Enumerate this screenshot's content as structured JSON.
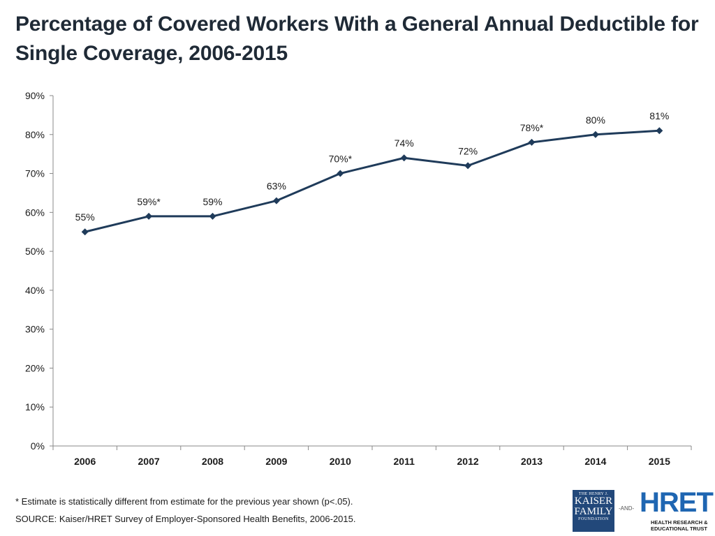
{
  "title": "Percentage of Covered Workers With a General Annual Deductible for Single Coverage, 2006-2015",
  "chart_data": {
    "type": "line",
    "title": "Percentage of Covered Workers With a General Annual Deductible for Single Coverage, 2006-2015",
    "xlabel": "",
    "ylabel": "",
    "categories": [
      "2006",
      "2007",
      "2008",
      "2009",
      "2010",
      "2011",
      "2012",
      "2013",
      "2014",
      "2015"
    ],
    "series": [
      {
        "name": "Covered Workers With a General Annual Deductible",
        "values": [
          55,
          59,
          59,
          63,
          70,
          74,
          72,
          78,
          80,
          81
        ],
        "labels": [
          "55%",
          "59%*",
          "59%",
          "63%",
          "70%*",
          "74%",
          "72%",
          "78%*",
          "80%",
          "81%"
        ]
      }
    ],
    "ylim": [
      0,
      90
    ],
    "yticks": [
      0,
      10,
      20,
      30,
      40,
      50,
      60,
      70,
      80,
      90
    ],
    "ytick_labels": [
      "0%",
      "10%",
      "20%",
      "30%",
      "40%",
      "50%",
      "60%",
      "70%",
      "80%",
      "90%"
    ],
    "grid": false,
    "line_color": "#1f3b5a"
  },
  "footnotes": {
    "significance": "* Estimate is statistically different from estimate for the previous year shown (p<.05).",
    "source": "SOURCE:  Kaiser/HRET Survey of Employer-Sponsored Health Benefits, 2006-2015."
  },
  "logos": {
    "kff_line1": "THE HENRY J.",
    "kff_line2": "KAISER",
    "kff_line3": "FAMILY",
    "kff_line4": "FOUNDATION",
    "and": "-AND-",
    "hret": "HRET",
    "hret_sub1": "HEALTH RESEARCH &",
    "hret_sub2": "EDUCATIONAL TRUST"
  }
}
